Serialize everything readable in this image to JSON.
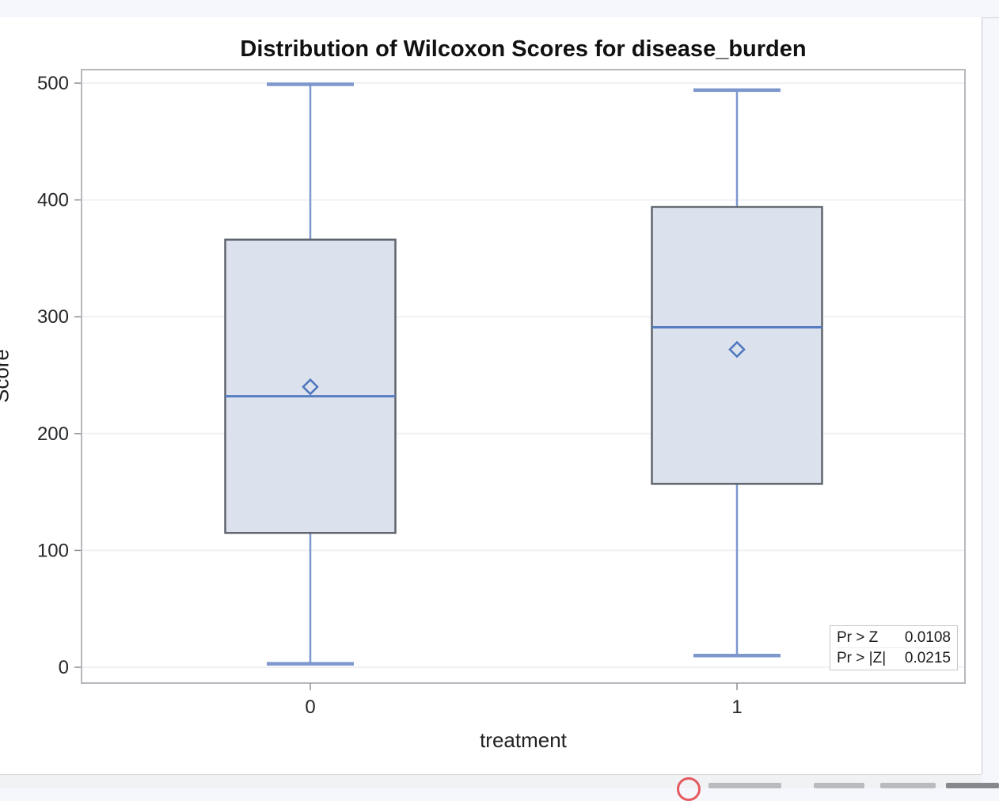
{
  "chart": {
    "title": "Distribution of Wilcoxon Scores for disease_burden",
    "y_axis": {
      "label": "Score"
    },
    "x_axis": {
      "label": "treatment"
    },
    "stats_box": {
      "rows": [
        {
          "label": "Pr > Z",
          "value": "0.0108"
        },
        {
          "label": "Pr > |Z|",
          "value": "0.0215"
        }
      ]
    }
  },
  "chart_data": {
    "type": "boxplot",
    "title": "Distribution of Wilcoxon Scores for disease_burden",
    "xlabel": "treatment",
    "ylabel": "Score",
    "ylim": [
      0,
      500
    ],
    "yticks": [
      0,
      100,
      200,
      300,
      400,
      500
    ],
    "grid": true,
    "legend": "none",
    "categories": [
      "0",
      "1"
    ],
    "series": [
      {
        "name": "0",
        "whisker_low": 3,
        "q1": 115,
        "median": 232,
        "mean": 240,
        "q3": 366,
        "whisker_high": 499
      },
      {
        "name": "1",
        "whisker_low": 10,
        "q1": 157,
        "median": 291,
        "mean": 272,
        "q3": 394,
        "whisker_high": 494
      }
    ],
    "annotations": [
      "Pr > Z 0.0108",
      "Pr > |Z| 0.0215"
    ]
  },
  "colors": {
    "box_fill": "#dbe2ee",
    "box_border": "#5f656d",
    "whisker": "#7e97cd",
    "median": "#567dc0",
    "mean_marker": "#4d76bd",
    "frame": "#b5b8bd",
    "grid": "#f1f1f4",
    "tick": "#8c8f94",
    "text": "#26282b",
    "record_icon": "#e45a60"
  },
  "footer": {
    "record_icon": "record-circle-icon"
  }
}
